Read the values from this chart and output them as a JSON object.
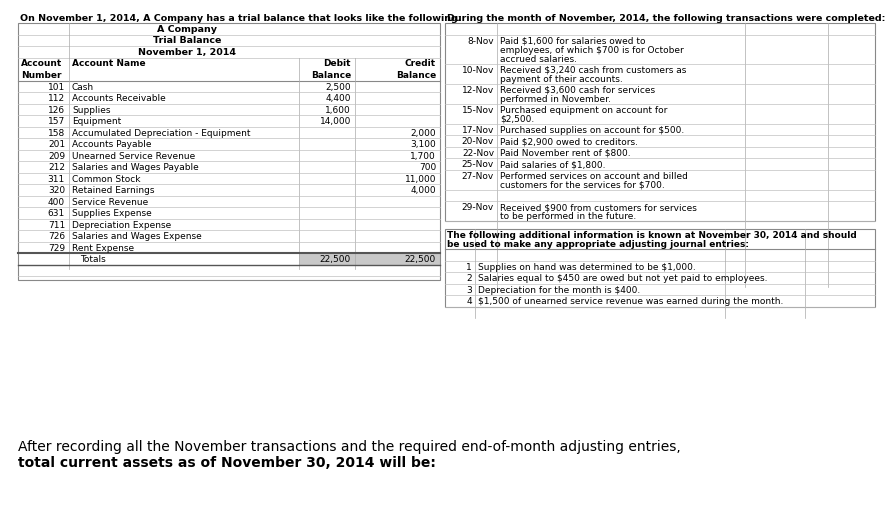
{
  "bg_color": "#ffffff",
  "left_header": "On November 1, 2014, A Company has a trial balance that looks like the following:",
  "right_header": "During the month of November, 2014, the following transactions were completed:",
  "company_title": "A Company",
  "company_subtitle": "Trial Balance",
  "company_date": "November 1, 2014",
  "accounts": [
    {
      "num": "101",
      "name": "Cash",
      "debit": "2,500",
      "credit": ""
    },
    {
      "num": "112",
      "name": "Accounts Receivable",
      "debit": "4,400",
      "credit": ""
    },
    {
      "num": "126",
      "name": "Supplies",
      "debit": "1,600",
      "credit": ""
    },
    {
      "num": "157",
      "name": "Equipment",
      "debit": "14,000",
      "credit": ""
    },
    {
      "num": "158",
      "name": "Accumulated Depreciation - Equipment",
      "debit": "",
      "credit": "2,000"
    },
    {
      "num": "201",
      "name": "Accounts Payable",
      "debit": "",
      "credit": "3,100"
    },
    {
      "num": "209",
      "name": "Unearned Service Revenue",
      "debit": "",
      "credit": "1,700"
    },
    {
      "num": "212",
      "name": "Salaries and Wages Payable",
      "debit": "",
      "credit": "700"
    },
    {
      "num": "311",
      "name": "Common Stock",
      "debit": "",
      "credit": "11,000"
    },
    {
      "num": "320",
      "name": "Retained Earnings",
      "debit": "",
      "credit": "4,000"
    },
    {
      "num": "400",
      "name": "Service Revenue",
      "debit": "",
      "credit": ""
    },
    {
      "num": "631",
      "name": "Supplies Expense",
      "debit": "",
      "credit": ""
    },
    {
      "num": "711",
      "name": "Depreciation Expense",
      "debit": "",
      "credit": ""
    },
    {
      "num": "726",
      "name": "Salaries and Wages Expense",
      "debit": "",
      "credit": ""
    },
    {
      "num": "729",
      "name": "Rent Expense",
      "debit": "",
      "credit": ""
    },
    {
      "num": "",
      "name": "Totals",
      "debit": "22,500",
      "credit": "22,500"
    }
  ],
  "transactions": [
    {
      "date": "8-Nov",
      "lines": [
        "Paid $1,600 for salaries owed to",
        "employees, of which $700 is for October",
        "accrued salaries."
      ]
    },
    {
      "date": "10-Nov",
      "lines": [
        "Received $3,240 cash from customers as",
        "payment of their accounts."
      ]
    },
    {
      "date": "12-Nov",
      "lines": [
        "Received $3,600 cash for services",
        "performed in November."
      ]
    },
    {
      "date": "15-Nov",
      "lines": [
        "Purchased equipment on account for",
        "$2,500."
      ]
    },
    {
      "date": "17-Nov",
      "lines": [
        "Purchased supplies on account for $500."
      ]
    },
    {
      "date": "20-Nov",
      "lines": [
        "Paid $2,900 owed to creditors."
      ]
    },
    {
      "date": "22-Nov",
      "lines": [
        "Paid November rent of $800."
      ]
    },
    {
      "date": "25-Nov",
      "lines": [
        "Paid salaries of $1,800."
      ]
    },
    {
      "date": "27-Nov",
      "lines": [
        "Performed services on account and billed",
        "customers for the services for $700."
      ]
    },
    {
      "date": "",
      "lines": [
        ""
      ]
    },
    {
      "date": "29-Nov",
      "lines": [
        "Received $900 from customers for services",
        "to be performed in the future."
      ]
    }
  ],
  "add_header1": "The following additional information is known at November 30, 2014 and should",
  "add_header2": "be used to make any appropriate adjusting journal entries:",
  "additional_items": [
    {
      "num": "1",
      "desc": "Supplies on hand was determined to be $1,000."
    },
    {
      "num": "2",
      "desc": "Salaries equal to $450 are owed but not yet paid to employees."
    },
    {
      "num": "3",
      "desc": "Depreciation for the month is $400."
    },
    {
      "num": "4",
      "desc": "$1,500 of unearned service revenue was earned during the month."
    }
  ],
  "footer1": "After recording all the November transactions and the required end-of-month adjusting entries,",
  "footer2": "total current assets as of November 30, 2014 will be:",
  "lc_color": "#aaaaaa",
  "line_color": "#c0c0c0",
  "border_color": "#888888",
  "totals_fill": "#b0b0b0"
}
